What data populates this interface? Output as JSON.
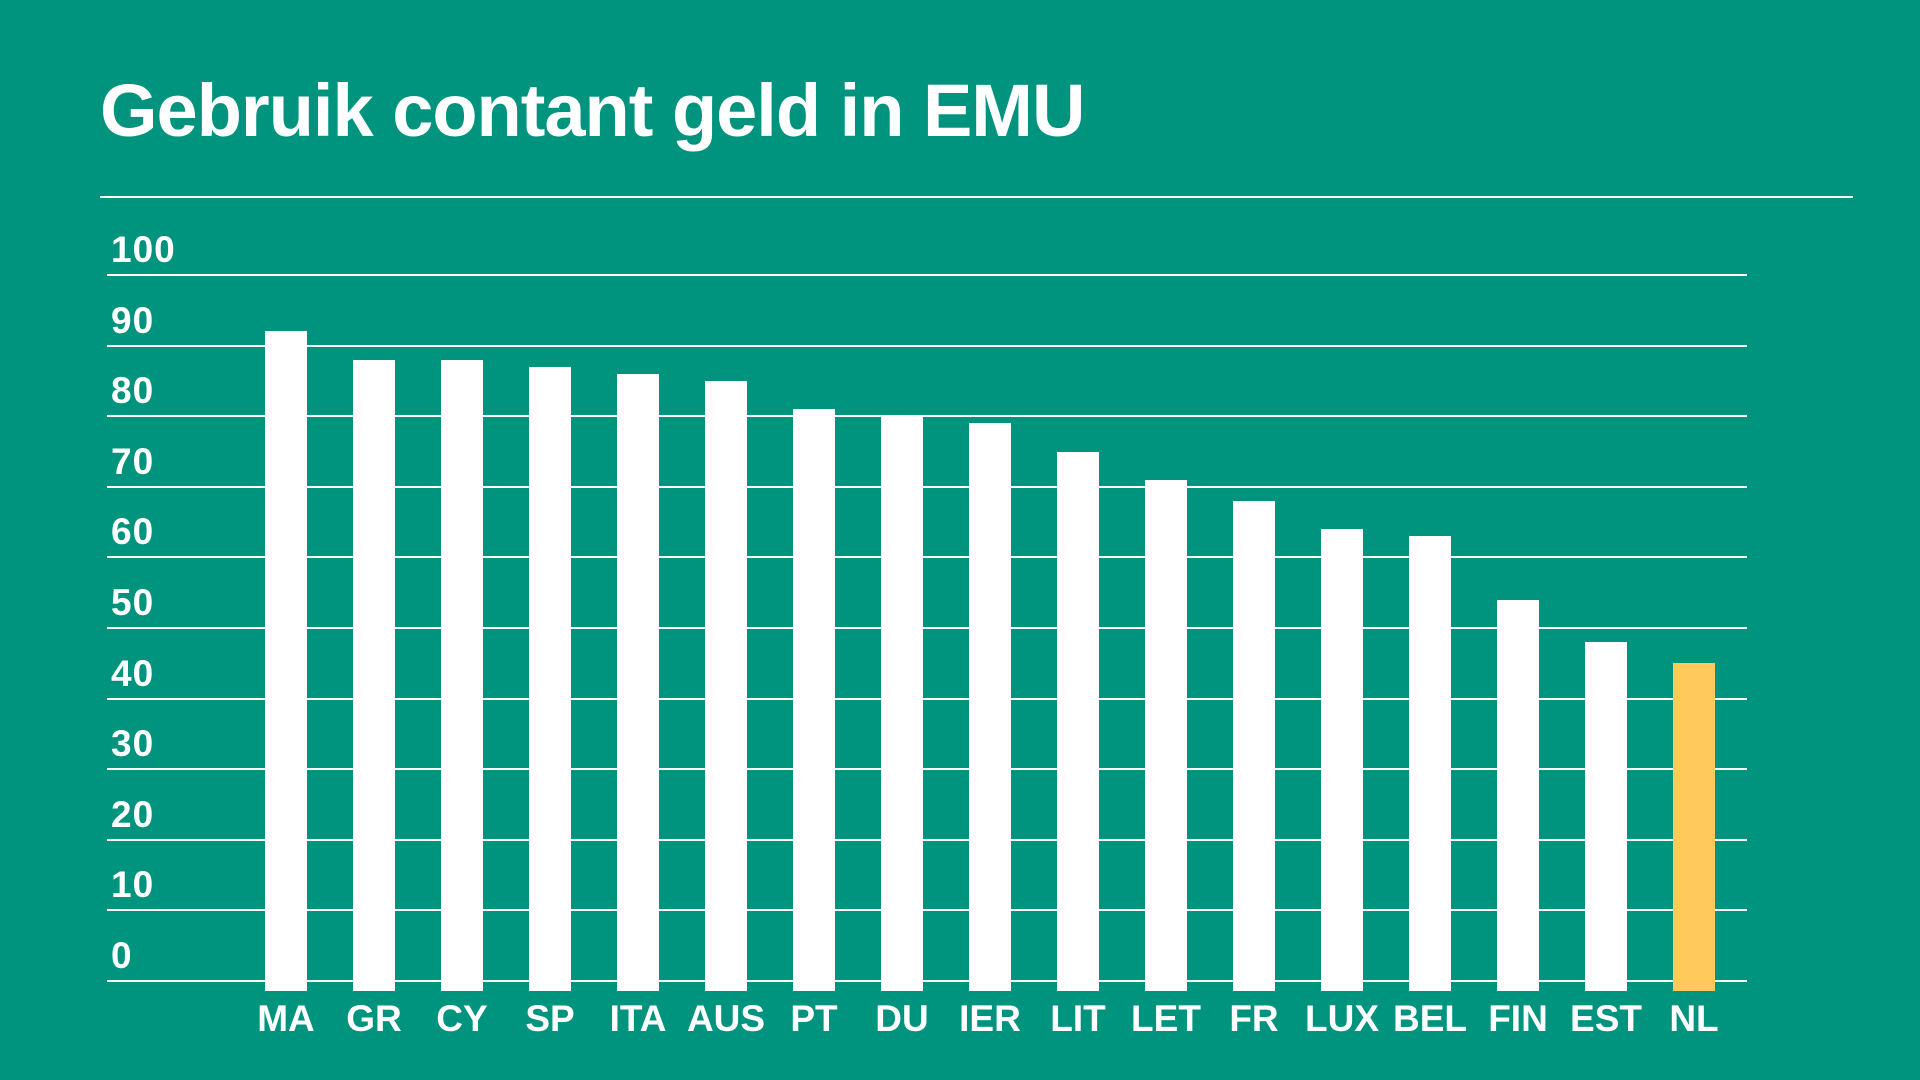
{
  "title": "Gebruik contant geld in EMU",
  "colors": {
    "background": "#00947E",
    "text": "#FFFFFF",
    "grid": "#FFFFFF",
    "bar_default": "#FFFFFF",
    "bar_highlight": "#FFC95C"
  },
  "chart_data": {
    "type": "bar",
    "title": "Gebruik contant geld in EMU",
    "categories": [
      "MA",
      "GR",
      "CY",
      "SP",
      "ITA",
      "AUS",
      "PT",
      "DU",
      "IER",
      "LIT",
      "LET",
      "FR",
      "LUX",
      "BEL",
      "FIN",
      "EST",
      "NL"
    ],
    "values": [
      92,
      88,
      88,
      87,
      86,
      85,
      81,
      80,
      79,
      75,
      71,
      68,
      64,
      63,
      54,
      48,
      45
    ],
    "highlight_category": "NL",
    "xlabel": "",
    "ylabel": "",
    "ylim": [
      0,
      100
    ],
    "yticks": [
      100,
      90,
      80,
      70,
      60,
      50,
      40,
      30,
      20,
      10,
      0
    ],
    "grid": true,
    "legend": false
  }
}
